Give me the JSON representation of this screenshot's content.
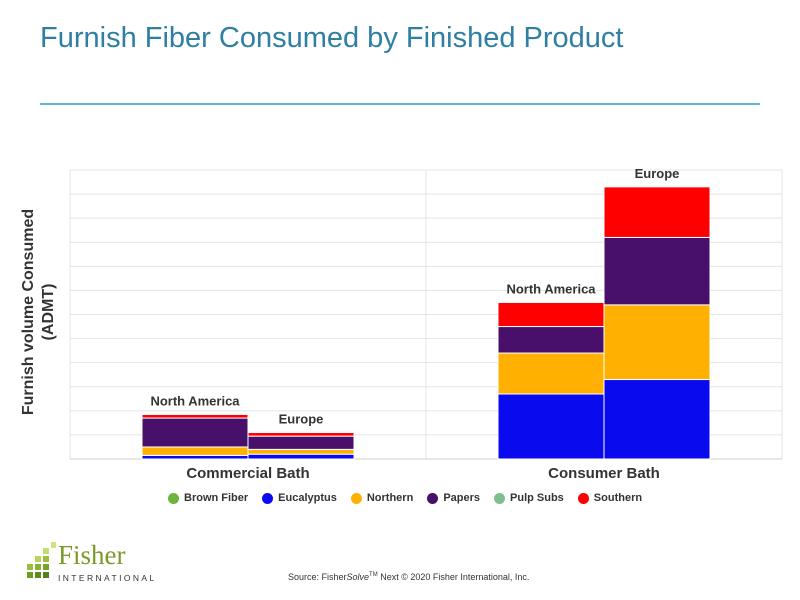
{
  "page": {
    "title": "Furnish Fiber Consumed by Finished Product",
    "source_prefix": "Source: Fisher",
    "source_italic": "Solve",
    "source_tm": "TM",
    "source_suffix": " Next © 2020 Fisher International, Inc."
  },
  "logo": {
    "word": "Fisher",
    "sub": "INTERNATIONAL"
  },
  "chart_data": {
    "type": "bar",
    "stacked": true,
    "title": "Furnish Fiber Consumed by Finished Product",
    "ylabel": "Furnish volume Consumed (ADMT)",
    "ylim": [
      0,
      12
    ],
    "grid": true,
    "legend_placement": "bottom",
    "groups": [
      "Commercial Bath",
      "Consumer Bath"
    ],
    "bar_labels": [
      "North America",
      "Europe"
    ],
    "series": [
      {
        "name": "Brown Fiber",
        "color": "#6db33f",
        "values": [
          [
            0,
            0
          ],
          [
            0,
            0
          ]
        ]
      },
      {
        "name": "Eucalyptus",
        "color": "#0a0aef",
        "values": [
          [
            0.15,
            0.2
          ],
          [
            2.7,
            3.3
          ]
        ]
      },
      {
        "name": "Northern",
        "color": "#ffb000",
        "values": [
          [
            0.35,
            0.2
          ],
          [
            1.7,
            3.1
          ]
        ]
      },
      {
        "name": "Papers",
        "color": "#48106b",
        "values": [
          [
            1.2,
            0.55
          ],
          [
            1.1,
            2.8
          ]
        ]
      },
      {
        "name": "Pulp Subs",
        "color": "#7fbf8f",
        "values": [
          [
            0,
            0
          ],
          [
            0,
            0
          ]
        ]
      },
      {
        "name": "Southern",
        "color": "#ff0000",
        "values": [
          [
            0.15,
            0.15
          ],
          [
            1.0,
            2.1
          ]
        ]
      }
    ]
  }
}
